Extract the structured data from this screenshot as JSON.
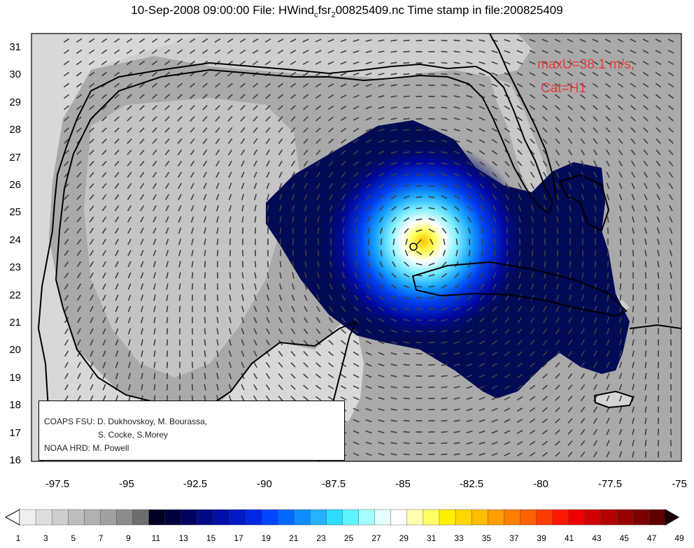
{
  "title": {
    "prefix": "10-Sep-2008 09:00:00 File: HWind",
    "sub1": "c",
    "mid": "fsr",
    "sub2": "2",
    "suffix": "00825409.nc Time stamp in file:200825409"
  },
  "annotation": {
    "max_wind": "maxU=38.1 m/s,",
    "category": "Cat=H1"
  },
  "credits": {
    "line1": "COAPS FSU: D. Dukhovskoy, M. Bourassa,",
    "line2": "S. Cocke, S.Morey",
    "line3": "NOAA HRD:  M. Powell"
  },
  "map_data": {
    "type": "wind-field-map",
    "x_ticks": [
      "-97.5",
      "-95",
      "-92.5",
      "-90",
      "-87.5",
      "-85",
      "-82.5",
      "-80",
      "-77.5",
      "-75"
    ],
    "y_ticks": [
      "31",
      "30",
      "29",
      "28",
      "27",
      "26",
      "25",
      "24",
      "23",
      "22",
      "21",
      "20",
      "19",
      "18",
      "17",
      "16"
    ],
    "lon_range": [
      -99.2,
      -75
    ],
    "lat_range": [
      16,
      31.5
    ],
    "storm_center": {
      "lon": -84.6,
      "lat": 23.8
    },
    "max_wind_ms": 38.1
  },
  "colorbar": {
    "labels": [
      "1",
      "3",
      "5",
      "7",
      "9",
      "11",
      "13",
      "15",
      "17",
      "19",
      "21",
      "23",
      "25",
      "27",
      "29",
      "31",
      "33",
      "35",
      "37",
      "39",
      "41",
      "43",
      "45",
      "47",
      "49"
    ],
    "colors": [
      "#efefef",
      "#dedede",
      "#cdcdcd",
      "#bebebe",
      "#b0b0b0",
      "#a0a0a0",
      "#8c8c8c",
      "#6e6e6e",
      "#000025",
      "#00003f",
      "#000060",
      "#000a85",
      "#0010a8",
      "#001ac8",
      "#0028e4",
      "#0045ff",
      "#0068ff",
      "#108eff",
      "#25b2ff",
      "#2ddcff",
      "#5ff4ff",
      "#a5ffff",
      "#e5ffff",
      "#ffffff",
      "#ffffb0",
      "#ffff66",
      "#fff000",
      "#ffd600",
      "#ffbc00",
      "#ffa000",
      "#ff8000",
      "#ff6000",
      "#ff3c00",
      "#ff1800",
      "#ee0000",
      "#d00000",
      "#b40000",
      "#980000",
      "#7c0000",
      "#600000"
    ]
  }
}
